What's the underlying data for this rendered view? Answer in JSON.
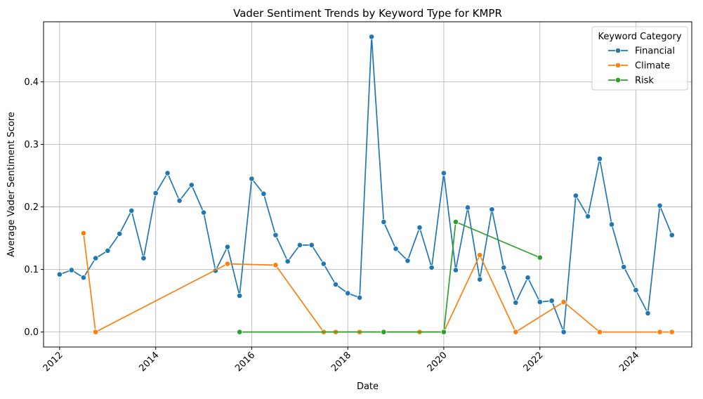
{
  "chart_data": {
    "type": "line",
    "title": "Vader Sentiment Trends by Keyword Type for KMPR",
    "xlabel": "Date",
    "ylabel": "Average Vader Sentiment Score",
    "xlim": [
      "2011-09-01",
      "2025-03-01"
    ],
    "ylim": [
      -0.024,
      0.496
    ],
    "x_ticks": [
      "2012",
      "2014",
      "2016",
      "2018",
      "2020",
      "2022",
      "2024"
    ],
    "y_ticks": [
      "0.0",
      "0.1",
      "0.2",
      "0.3",
      "0.4"
    ],
    "grid": true,
    "legend": {
      "title": "Keyword Category",
      "position": "top-right"
    },
    "series": [
      {
        "name": "Financial",
        "color": "#1f77b4",
        "points": [
          [
            "2012-01-01",
            0.092
          ],
          [
            "2012-04-01",
            0.099
          ],
          [
            "2012-07-01",
            0.087
          ],
          [
            "2012-10-01",
            0.118
          ],
          [
            "2013-01-01",
            0.13
          ],
          [
            "2013-04-01",
            0.157
          ],
          [
            "2013-07-01",
            0.194
          ],
          [
            "2013-10-01",
            0.118
          ],
          [
            "2014-01-01",
            0.222
          ],
          [
            "2014-04-01",
            0.254
          ],
          [
            "2014-07-01",
            0.21
          ],
          [
            "2014-10-01",
            0.235
          ],
          [
            "2015-01-01",
            0.191
          ],
          [
            "2015-04-01",
            0.098
          ],
          [
            "2015-07-01",
            0.136
          ],
          [
            "2015-10-01",
            0.058
          ],
          [
            "2016-01-01",
            0.245
          ],
          [
            "2016-04-01",
            0.221
          ],
          [
            "2016-07-01",
            0.155
          ],
          [
            "2016-10-01",
            0.113
          ],
          [
            "2017-01-01",
            0.139
          ],
          [
            "2017-04-01",
            0.139
          ],
          [
            "2017-07-01",
            0.109
          ],
          [
            "2017-10-01",
            0.076
          ],
          [
            "2018-01-01",
            0.062
          ],
          [
            "2018-04-01",
            0.055
          ],
          [
            "2018-07-01",
            0.472
          ],
          [
            "2018-10-01",
            0.176
          ],
          [
            "2019-01-01",
            0.133
          ],
          [
            "2019-04-01",
            0.114
          ],
          [
            "2019-07-01",
            0.167
          ],
          [
            "2019-10-01",
            0.103
          ],
          [
            "2020-01-01",
            0.254
          ],
          [
            "2020-04-01",
            0.099
          ],
          [
            "2020-07-01",
            0.199
          ],
          [
            "2020-10-01",
            0.084
          ],
          [
            "2021-01-01",
            0.196
          ],
          [
            "2021-04-01",
            0.103
          ],
          [
            "2021-07-01",
            0.047
          ],
          [
            "2021-10-01",
            0.087
          ],
          [
            "2022-01-01",
            0.048
          ],
          [
            "2022-04-01",
            0.05
          ],
          [
            "2022-07-01",
            0.0
          ],
          [
            "2022-10-01",
            0.218
          ],
          [
            "2023-01-01",
            0.185
          ],
          [
            "2023-04-01",
            0.277
          ],
          [
            "2023-07-01",
            0.172
          ],
          [
            "2023-10-01",
            0.104
          ],
          [
            "2024-01-01",
            0.067
          ],
          [
            "2024-04-01",
            0.03
          ],
          [
            "2024-07-01",
            0.202
          ],
          [
            "2024-10-01",
            0.155
          ]
        ]
      },
      {
        "name": "Climate",
        "color": "#ff7f0e",
        "points": [
          [
            "2012-07-01",
            0.158
          ],
          [
            "2012-10-01",
            0.0
          ],
          [
            "2015-07-01",
            0.109
          ],
          [
            "2016-07-01",
            0.107
          ],
          [
            "2017-07-01",
            0.0
          ],
          [
            "2017-10-01",
            0.0
          ],
          [
            "2018-04-01",
            0.0
          ],
          [
            "2019-07-01",
            0.0
          ],
          [
            "2020-01-01",
            0.0
          ],
          [
            "2020-10-01",
            0.123
          ],
          [
            "2021-07-01",
            0.0
          ],
          [
            "2022-07-01",
            0.048
          ],
          [
            "2023-04-01",
            0.0
          ],
          [
            "2024-07-01",
            0.0
          ],
          [
            "2024-10-01",
            0.0
          ]
        ]
      },
      {
        "name": "Risk",
        "color": "#2ca02c",
        "points": [
          [
            "2015-10-01",
            0.0
          ],
          [
            "2018-10-01",
            0.0
          ],
          [
            "2020-01-01",
            0.0
          ],
          [
            "2020-04-01",
            0.176
          ],
          [
            "2022-01-01",
            0.119
          ]
        ]
      }
    ]
  }
}
